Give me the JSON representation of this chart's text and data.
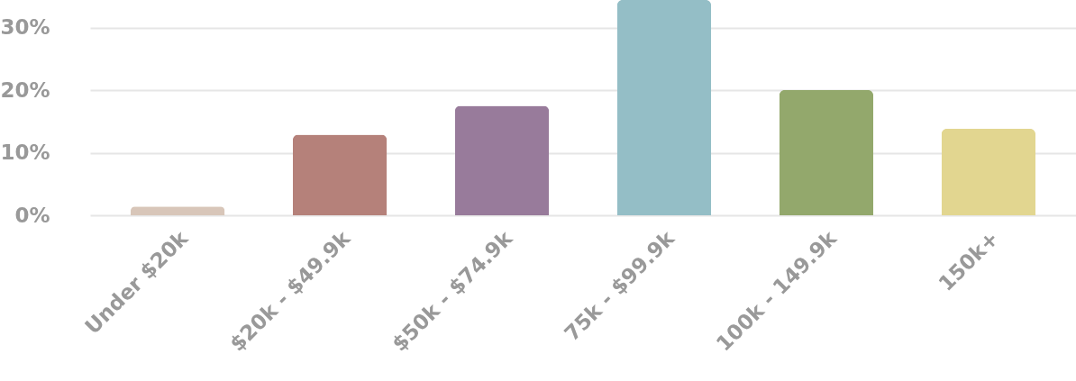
{
  "chart_data": {
    "type": "bar",
    "categories": [
      "Under $20k",
      "$20k - $49.9k",
      "$50k - $74.9k",
      "75k - $99.9k",
      "100k - 149.9k",
      "150k+"
    ],
    "values": [
      1.4,
      12.9,
      17.5,
      34.4,
      20,
      13.8
    ],
    "colors": [
      "#d8c6b9",
      "#b5817a",
      "#987b9b",
      "#94bec6",
      "#93a86c",
      "#e2d690"
    ],
    "ylim": [
      0,
      34.4
    ],
    "yticks": [
      {
        "value": 0,
        "label": "0%"
      },
      {
        "value": 10,
        "label": "10%"
      },
      {
        "value": 20,
        "label": "20%"
      },
      {
        "value": 30,
        "label": "30%"
      }
    ],
    "grid": "y"
  }
}
